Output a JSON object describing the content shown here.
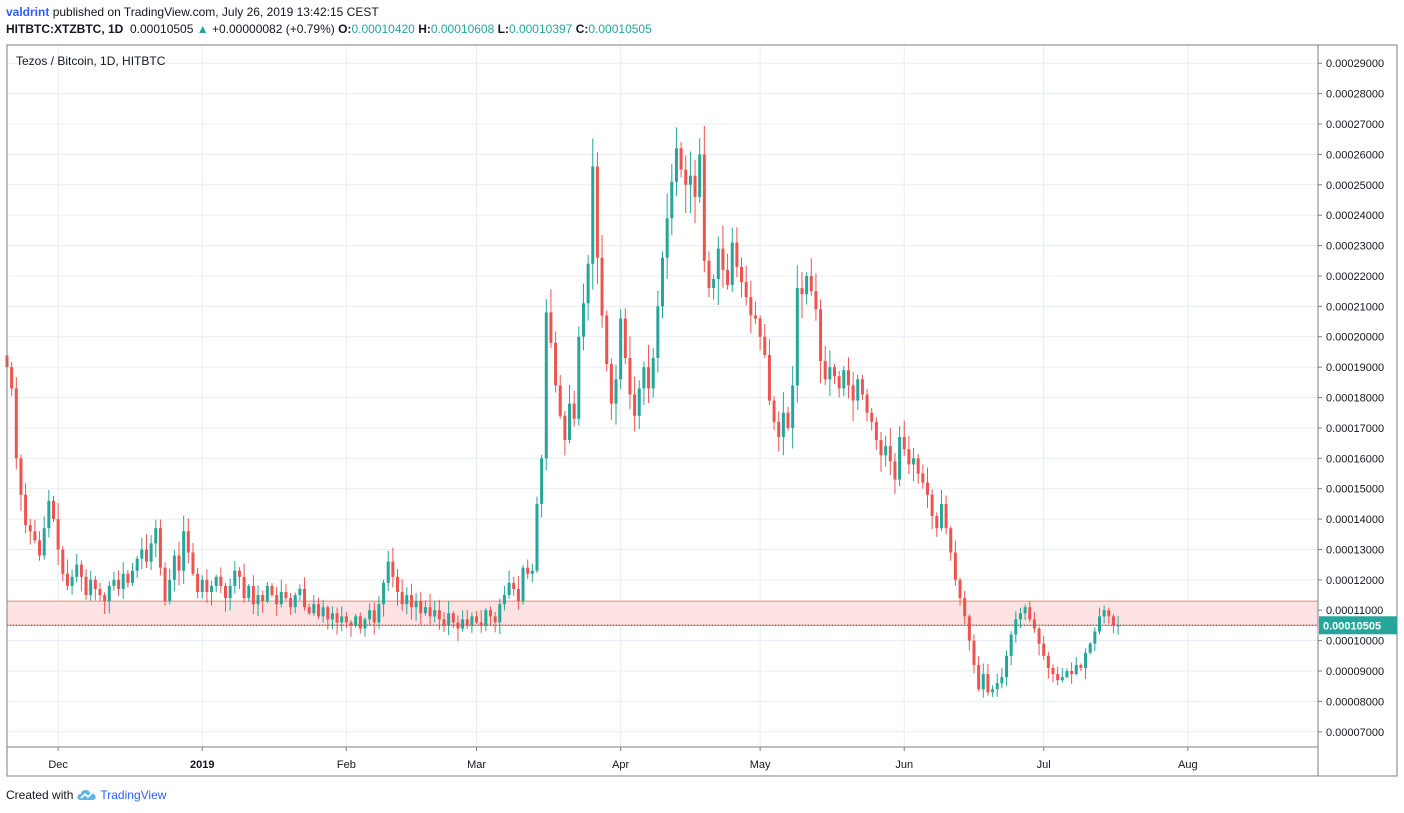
{
  "header": {
    "user": "valdrint",
    "published_text": "published on TradingView.com, July 26, 2019 13:42:15 CEST",
    "symbol": "HITBTC:XTZBTC, 1D",
    "last": "0.00010505",
    "change": "+0.00000082 (+0.79%)",
    "open_label": "O:",
    "open": "0.00010420",
    "high_label": "H:",
    "high": "0.00010608",
    "low_label": "L:",
    "low": "0.00010397",
    "close_label": "C:",
    "close": "0.00010505"
  },
  "footer": {
    "created_with": "Created with",
    "brand": "TradingView"
  },
  "colors": {
    "up": "#26a69a",
    "down": "#ef5350",
    "zone_fill": "#fde3e3",
    "zone_line": "#f08080",
    "grid": "#e8edf3",
    "last_price": "#26a69a"
  },
  "chart_data": {
    "type": "candlestick",
    "title": "Tezos / Bitcoin, 1D, HITBTC",
    "x_range": [
      "2018-11-20",
      "2019-08-29"
    ],
    "ylim": [
      6.5e-05,
      0.000296
    ],
    "y_ticks": [
      "0.00029000",
      "0.00028000",
      "0.00027000",
      "0.00026000",
      "0.00025000",
      "0.00024000",
      "0.00023000",
      "0.00022000",
      "0.00021000",
      "0.00020000",
      "0.00019000",
      "0.00018000",
      "0.00017000",
      "0.00016000",
      "0.00015000",
      "0.00014000",
      "0.00013000",
      "0.00012000",
      "0.00011000",
      "0.00010000",
      "0.00009000",
      "0.00008000",
      "0.00007000"
    ],
    "x_ticks": [
      {
        "date": "2018-12-01",
        "label": "Dec"
      },
      {
        "date": "2019-01-01",
        "label": "2019",
        "bold": true
      },
      {
        "date": "2019-02-01",
        "label": "Feb"
      },
      {
        "date": "2019-03-01",
        "label": "Mar"
      },
      {
        "date": "2019-04-01",
        "label": "Apr"
      },
      {
        "date": "2019-05-01",
        "label": "May"
      },
      {
        "date": "2019-06-01",
        "label": "Jun"
      },
      {
        "date": "2019-07-01",
        "label": "Jul"
      },
      {
        "date": "2019-08-01",
        "label": "Aug"
      }
    ],
    "first_date": "2018-11-20",
    "close_series": [
      0.00019,
      0.000183,
      0.00016,
      0.000148,
      0.000138,
      0.000136,
      0.000133,
      0.000128,
      0.000137,
      0.000146,
      0.00014,
      0.00013,
      0.000122,
      0.000118,
      0.000121,
      0.000125,
      0.000121,
      0.000115,
      0.00012,
      0.000117,
      0.000115,
      0.000113,
      0.000118,
      0.00012,
      0.000117,
      0.000122,
      0.000119,
      0.000123,
      0.000127,
      0.00013,
      0.000126,
      0.000132,
      0.000137,
      0.000124,
      0.000113,
      0.00012,
      0.000128,
      0.000123,
      0.000136,
      0.000129,
      0.000122,
      0.000116,
      0.00012,
      0.000116,
      0.000118,
      0.000121,
      0.000118,
      0.000114,
      0.000118,
      0.000123,
      0.000121,
      0.000114,
      0.000118,
      0.000112,
      0.000115,
      0.000113,
      0.000118,
      0.000115,
      0.000112,
      0.000116,
      0.000114,
      0.000111,
      0.000115,
      0.000117,
      0.000111,
      0.000109,
      0.000112,
      0.000108,
      0.000111,
      0.000107,
      0.000109,
      0.000106,
      0.000108,
      0.000106,
      0.000105,
      0.000108,
      0.000104,
      0.000107,
      0.00011,
      0.000106,
      0.000112,
      0.000119,
      0.000126,
      0.000121,
      0.000116,
      0.000112,
      0.000115,
      0.000111,
      0.000113,
      0.000109,
      0.000111,
      0.000108,
      0.00011,
      0.000107,
      0.000105,
      0.000109,
      0.000106,
      0.000104,
      0.000107,
      0.000105,
      0.000108,
      0.000106,
      0.000105,
      0.00011,
      0.000108,
      0.000106,
      0.000112,
      0.000115,
      0.000119,
      0.000117,
      0.000113,
      0.000124,
      0.000122,
      0.000123,
      0.000145,
      0.00016,
      0.000208,
      0.000198,
      0.000184,
      0.000174,
      0.000166,
      0.000178,
      0.000173,
      0.0002,
      0.000211,
      0.000224,
      0.000256,
      0.000226,
      0.000207,
      0.000191,
      0.000178,
      0.000186,
      0.000206,
      0.000193,
      0.000181,
      0.000174,
      0.000183,
      0.00019,
      0.000183,
      0.000193,
      0.00021,
      0.000226,
      0.000239,
      0.000251,
      0.000262,
      0.000255,
      0.00025,
      0.000253,
      0.000246,
      0.00026,
      0.000225,
      0.000216,
      0.000219,
      0.000229,
      0.000222,
      0.000217,
      0.000231,
      0.000223,
      0.000218,
      0.000213,
      0.000207,
      0.000206,
      0.0002,
      0.000194,
      0.000179,
      0.000172,
      0.000167,
      0.000175,
      0.00017,
      0.000184,
      0.000216,
      0.000214,
      0.00022,
      0.000215,
      0.000209,
      0.000192,
      0.000186,
      0.00019,
      0.000187,
      0.000183,
      0.000189,
      0.000184,
      0.000179,
      0.000186,
      0.000181,
      0.000175,
      0.000172,
      0.000166,
      0.000161,
      0.000164,
      0.000159,
      0.000153,
      0.000167,
      0.000163,
      0.000158,
      0.00016,
      0.000155,
      0.000152,
      0.000148,
      0.000141,
      0.000137,
      0.000145,
      0.000137,
      0.000129,
      0.00012,
      0.000114,
      0.000108,
      0.0001,
      9.2e-05,
      8.4e-05,
      8.9e-05,
      8.3e-05,
      8.4e-05,
      8.6e-05,
      8.8e-05,
      9.5e-05,
      0.000102,
      0.000107,
      0.000109,
      0.000111,
      0.000107,
      0.000104,
      9.9e-05,
      9.5e-05,
      9.1e-05,
      8.9e-05,
      8.7e-05,
      8.8e-05,
      9e-05,
      8.9e-05,
      9.2e-05,
      9.1e-05,
      9.6e-05,
      9.9e-05,
      0.000103,
      0.000108,
      0.00011,
      0.000108,
      0.000105,
      0.000105
    ],
    "resistance_zone": {
      "low": 0.00010505,
      "high": 0.000113
    },
    "last_price_label": "0.00010505",
    "last_price": 0.00010505
  }
}
